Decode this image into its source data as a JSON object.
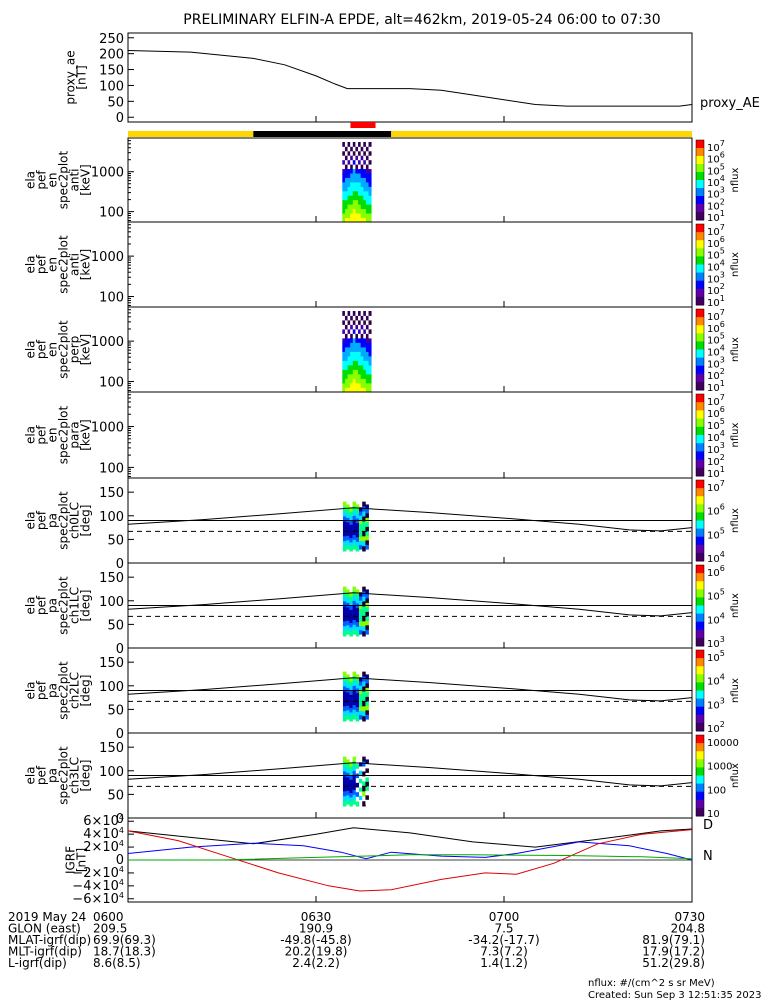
{
  "chart_data": {
    "type": "multi-panel",
    "title": "PRELIMINARY ELFIN-A EPDE, alt=462km, 2019-05-24 06:00 to 07:30",
    "time_ticks": [
      "0600",
      "0630",
      "0700",
      "0730"
    ],
    "time_range_min": [
      0,
      90
    ],
    "proxy_ae": {
      "ylabel": [
        "proxy_ae",
        "[nT]"
      ],
      "legend": "proxy_AE",
      "yticks": [
        "250",
        "200",
        "150",
        "100",
        "50",
        "0"
      ],
      "ylim": [
        -15,
        265
      ],
      "series": [
        [
          0,
          210
        ],
        [
          10,
          205
        ],
        [
          15,
          195
        ],
        [
          20,
          185
        ],
        [
          25,
          165
        ],
        [
          30,
          130
        ],
        [
          33,
          105
        ],
        [
          35,
          90
        ],
        [
          40,
          90
        ],
        [
          45,
          90
        ],
        [
          50,
          85
        ],
        [
          55,
          70
        ],
        [
          60,
          55
        ],
        [
          65,
          40
        ],
        [
          70,
          35
        ],
        [
          75,
          35
        ],
        [
          80,
          35
        ],
        [
          85,
          35
        ],
        [
          88,
          35
        ],
        [
          90,
          40
        ]
      ]
    },
    "status_bar": {
      "segments": [
        {
          "from": 0,
          "to": 20,
          "color": "#ffd700"
        },
        {
          "from": 20,
          "to": 42,
          "color": "#000000"
        },
        {
          "from": 42,
          "to": 90,
          "color": "#ffd700"
        }
      ],
      "science_zone": {
        "from": 35.5,
        "to": 39.5,
        "color": "#ff0000"
      }
    },
    "spectrograms": [
      {
        "ylabel": [
          "ela",
          "pef",
          "en",
          "spec2plot",
          "anti",
          "[keV]"
        ],
        "yticks": [
          "1000",
          "100"
        ],
        "ylim_kev": [
          55,
          7000
        ],
        "has_data": true,
        "cbar_label": "nflux",
        "cbar_ticks": [
          "10^7",
          "10^6",
          "10^5",
          "10^4",
          "10^3",
          "10^2",
          "10^1"
        ]
      },
      {
        "ylabel": [
          "ela",
          "pef",
          "en",
          "spec2plot",
          "anti",
          "[keV]"
        ],
        "yticks": [
          "1000",
          "100"
        ],
        "ylim_kev": [
          55,
          7000
        ],
        "has_data": false,
        "cbar_label": "nflux",
        "cbar_ticks": [
          "10^7",
          "10^6",
          "10^5",
          "10^4",
          "10^3",
          "10^2",
          "10^1"
        ]
      },
      {
        "ylabel": [
          "ela",
          "pef",
          "en",
          "spec2plot",
          "perp",
          "[keV]"
        ],
        "yticks": [
          "1000",
          "100"
        ],
        "ylim_kev": [
          55,
          7000
        ],
        "has_data": true,
        "cbar_label": "nflux",
        "cbar_ticks": [
          "10^7",
          "10^6",
          "10^5",
          "10^4",
          "10^3",
          "10^2",
          "10^1"
        ]
      },
      {
        "ylabel": [
          "ela",
          "pef",
          "en",
          "spec2plot",
          "para",
          "[keV]"
        ],
        "yticks": [
          "1000",
          "100"
        ],
        "ylim_kev": [
          55,
          7000
        ],
        "has_data": false,
        "cbar_label": "nflux",
        "cbar_ticks": [
          "10^7",
          "10^6",
          "10^5",
          "10^4",
          "10^3",
          "10^2",
          "10^1"
        ]
      }
    ],
    "pitch_angle": [
      {
        "ylabel": [
          "ela",
          "pef",
          "pa",
          "spec2plot",
          "ch0LC",
          "[deg]"
        ],
        "yticks": [
          "150",
          "100",
          "50",
          "0"
        ],
        "ylim_deg": [
          0,
          180
        ],
        "cbar_label": "nflux",
        "cbar_ticks": [
          "10^7",
          "10^6",
          "10^5",
          "10^4"
        ]
      },
      {
        "ylabel": [
          "ela",
          "pef",
          "pa",
          "spec2plot",
          "ch1LC",
          "[deg]"
        ],
        "yticks": [
          "150",
          "100",
          "50",
          "0"
        ],
        "ylim_deg": [
          0,
          180
        ],
        "cbar_label": "nflux",
        "cbar_ticks": [
          "10^6",
          "10^5",
          "10^4",
          "10^3"
        ]
      },
      {
        "ylabel": [
          "ela",
          "pef",
          "pa",
          "spec2plot",
          "ch2LC",
          "[deg]"
        ],
        "yticks": [
          "150",
          "100",
          "50",
          "0"
        ],
        "ylim_deg": [
          0,
          180
        ],
        "cbar_label": "nflux",
        "cbar_ticks": [
          "10^5",
          "10^4",
          "10^3",
          "10^2"
        ]
      },
      {
        "ylabel": [
          "ela",
          "pef",
          "pa",
          "spec2plot",
          "ch3LC",
          "[deg]"
        ],
        "yticks": [
          "150",
          "100",
          "50",
          "0"
        ],
        "ylim_deg": [
          0,
          180
        ],
        "cbar_label": "nflux",
        "cbar_ticks": [
          "10000",
          "1000",
          "100",
          "10"
        ]
      }
    ],
    "pa_lines": {
      "horizontal_deg": 90,
      "solid": [
        [
          0,
          82
        ],
        [
          12,
          92
        ],
        [
          24,
          104
        ],
        [
          36,
          117
        ],
        [
          48,
          107
        ],
        [
          60,
          95
        ],
        [
          72,
          82
        ],
        [
          80,
          70
        ],
        [
          85,
          68
        ],
        [
          90,
          75
        ]
      ],
      "dashed": [
        [
          0,
          67
        ],
        [
          90,
          67
        ]
      ]
    },
    "igrf": {
      "ylabel": [
        "IGRF",
        "[nT]"
      ],
      "yticks": [
        "6×10^4",
        "4×10^4",
        "2×10^4",
        "0",
        "−2×10^4",
        "−4×10^4",
        "−6×10^4"
      ],
      "ylim": [
        -65000,
        65000
      ],
      "legend": [
        "D",
        "N"
      ],
      "series": [
        {
          "name": "black",
          "color": "#000000",
          "points": [
            [
              0,
              45000
            ],
            [
              10,
              35000
            ],
            [
              20,
              25000
            ],
            [
              30,
              40000
            ],
            [
              36,
              50000
            ],
            [
              45,
              42000
            ],
            [
              55,
              28000
            ],
            [
              65,
              20000
            ],
            [
              75,
              32000
            ],
            [
              85,
              45000
            ],
            [
              90,
              48000
            ]
          ]
        },
        {
          "name": "blue",
          "color": "#0000ff",
          "points": [
            [
              0,
              10000
            ],
            [
              10,
              20000
            ],
            [
              20,
              26000
            ],
            [
              28,
              22000
            ],
            [
              34,
              12000
            ],
            [
              38,
              2000
            ],
            [
              42,
              12000
            ],
            [
              50,
              6000
            ],
            [
              57,
              4000
            ],
            [
              62,
              10000
            ],
            [
              72,
              28000
            ],
            [
              80,
              22000
            ],
            [
              86,
              10000
            ],
            [
              90,
              0
            ]
          ]
        },
        {
          "name": "red",
          "color": "#dd0000",
          "points": [
            [
              0,
              45000
            ],
            [
              8,
              30000
            ],
            [
              16,
              5000
            ],
            [
              24,
              -20000
            ],
            [
              32,
              -40000
            ],
            [
              37,
              -48000
            ],
            [
              42,
              -46000
            ],
            [
              50,
              -30000
            ],
            [
              57,
              -20000
            ],
            [
              62,
              -22000
            ],
            [
              68,
              -5000
            ],
            [
              75,
              25000
            ],
            [
              82,
              40000
            ],
            [
              90,
              47000
            ]
          ]
        },
        {
          "name": "green",
          "color": "#00aa00",
          "points": [
            [
              0,
              0
            ],
            [
              15,
              0
            ],
            [
              30,
              4000
            ],
            [
              45,
              8000
            ],
            [
              55,
              8000
            ],
            [
              70,
              7000
            ],
            [
              82,
              5000
            ],
            [
              90,
              2000
            ]
          ]
        }
      ]
    },
    "ephemeris": {
      "rows": [
        {
          "label": "2019 May 24",
          "values": [
            "0600",
            "0630",
            "0700",
            "0730"
          ]
        },
        {
          "label": "GLON (east)",
          "values": [
            "209.5",
            "190.9",
            "7.5",
            "204.8"
          ]
        },
        {
          "label": "MLAT-igrf(dip)",
          "values": [
            "69.9(69.3)",
            "-49.8(-45.8)",
            "-34.2(-17.7)",
            "81.9(79.1)"
          ]
        },
        {
          "label": "MLT-igrf(dip)",
          "values": [
            "18.7(18.3)",
            "20.2(19.8)",
            "7.3(7.2)",
            "17.9(17.2)"
          ]
        },
        {
          "label": "L-igrf(dip)",
          "values": [
            "8.6(8.5)",
            "2.4(2.2)",
            "1.4(1.2)",
            "51.2(29.8)"
          ]
        }
      ]
    },
    "footer": {
      "units": "nflux: #/(cm^2 s sr MeV)",
      "created": "Created: Sun Sep  3 12:51:35 2023"
    }
  }
}
